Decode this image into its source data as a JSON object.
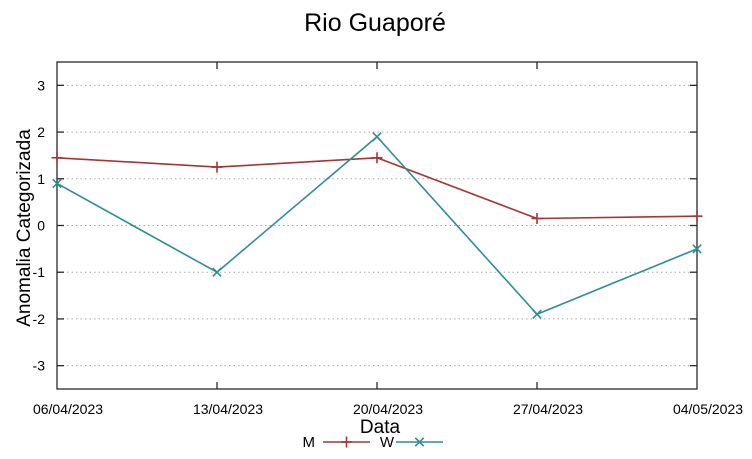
{
  "chart_data": {
    "type": "line",
    "title": "Rio Guaporé",
    "xlabel": "Data",
    "ylabel": "Anomalia Categorizada",
    "categories": [
      "06/04/2023",
      "13/04/2023",
      "20/04/2023",
      "27/04/2023",
      "04/05/2023"
    ],
    "series": [
      {
        "name": "M",
        "color": "#aa3333",
        "marker": "plus",
        "values": [
          1.45,
          1.25,
          1.45,
          0.15,
          0.2
        ]
      },
      {
        "name": "W",
        "color": "#2f8e8e",
        "marker": "cross",
        "values": [
          0.9,
          -1.0,
          1.9,
          -1.9,
          -0.5
        ]
      }
    ],
    "ylim": [
      -3.5,
      3.5
    ],
    "yticks": [
      -3,
      -2,
      -1,
      0,
      1,
      2,
      3
    ],
    "grid": "horizontal-dotted",
    "legend_position": "bottom-center",
    "grid_color": "#a8a8a8",
    "axis_color": "#2a2a2a",
    "text_color": "#000000",
    "background_color": "#ffffff"
  }
}
